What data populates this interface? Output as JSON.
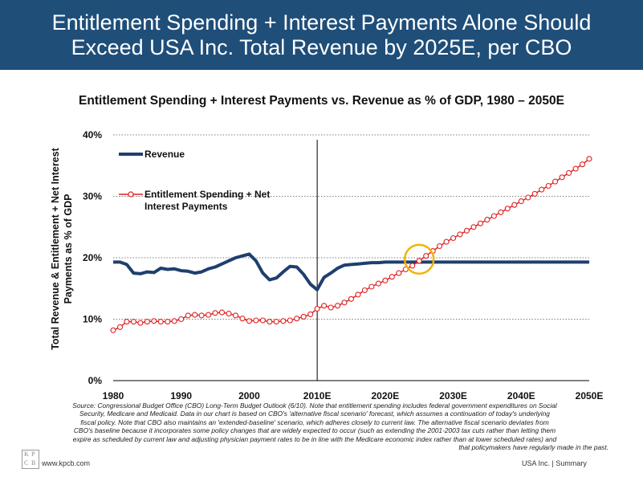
{
  "header": {
    "line1": "Entitlement Spending + Interest Payments Alone Should",
    "line2": "Exceed USA Inc. Total Revenue by 2025E, per CBO"
  },
  "subtitle": "Entitlement Spending + Interest Payments vs. Revenue as % of GDP, 1980 – 2050E",
  "chart_data": {
    "type": "line",
    "xlabel": "",
    "ylabel_line1": "Total Revenue & Entitlement + Net Interest",
    "ylabel_line2": "Payments as % of GDP",
    "x_ticks": [
      "1980",
      "1990",
      "2000",
      "2010E",
      "2020E",
      "2030E",
      "2040E",
      "2050E"
    ],
    "y_ticks": [
      "0%",
      "10%",
      "20%",
      "30%",
      "40%"
    ],
    "xlim": [
      1980,
      2050
    ],
    "ylim": [
      0,
      40
    ],
    "grid": "horizontal dotted",
    "vertical_marker_year": 2010,
    "highlight_circle": {
      "x": 2025,
      "y": 19.5
    },
    "colors": {
      "revenue": "#1f3f6e",
      "entitlement": "#e02020"
    },
    "series": [
      {
        "name": "Revenue",
        "marker": "none",
        "x": [
          1980,
          1981,
          1982,
          1983,
          1984,
          1985,
          1986,
          1987,
          1988,
          1989,
          1990,
          1991,
          1992,
          1993,
          1994,
          1995,
          1996,
          1997,
          1998,
          1999,
          2000,
          2001,
          2002,
          2003,
          2004,
          2005,
          2006,
          2007,
          2008,
          2009,
          2010,
          2011,
          2012,
          2013,
          2014,
          2015,
          2016,
          2017,
          2018,
          2019,
          2020,
          2025,
          2030,
          2035,
          2040,
          2045,
          2050
        ],
        "y": [
          19.3,
          19.3,
          18.9,
          17.5,
          17.4,
          17.7,
          17.6,
          18.3,
          18.1,
          18.2,
          17.9,
          17.8,
          17.5,
          17.7,
          18.2,
          18.5,
          19.0,
          19.5,
          20.0,
          20.3,
          20.6,
          19.5,
          17.5,
          16.4,
          16.7,
          17.7,
          18.6,
          18.5,
          17.3,
          15.7,
          14.8,
          16.8,
          17.5,
          18.3,
          18.8,
          18.9,
          19.0,
          19.1,
          19.2,
          19.2,
          19.3,
          19.3,
          19.3,
          19.3,
          19.3,
          19.3,
          19.3
        ]
      },
      {
        "name": "Entitlement Spending + Net Interest Payments",
        "marker": "circle",
        "x": [
          1980,
          1981,
          1982,
          1983,
          1984,
          1985,
          1986,
          1987,
          1988,
          1989,
          1990,
          1991,
          1992,
          1993,
          1994,
          1995,
          1996,
          1997,
          1998,
          1999,
          2000,
          2001,
          2002,
          2003,
          2004,
          2005,
          2006,
          2007,
          2008,
          2009,
          2010,
          2011,
          2012,
          2013,
          2014,
          2015,
          2016,
          2017,
          2018,
          2019,
          2020,
          2021,
          2022,
          2023,
          2024,
          2025,
          2026,
          2027,
          2028,
          2029,
          2030,
          2031,
          2032,
          2033,
          2034,
          2035,
          2036,
          2037,
          2038,
          2039,
          2040,
          2041,
          2042,
          2043,
          2044,
          2045,
          2046,
          2047,
          2048,
          2049,
          2050
        ],
        "y": [
          8.2,
          8.7,
          9.6,
          9.6,
          9.4,
          9.6,
          9.7,
          9.6,
          9.6,
          9.7,
          10.0,
          10.6,
          10.7,
          10.6,
          10.7,
          11.0,
          11.1,
          10.9,
          10.6,
          10.1,
          9.7,
          9.8,
          9.8,
          9.6,
          9.6,
          9.7,
          9.8,
          10.1,
          10.4,
          10.8,
          11.7,
          12.2,
          11.9,
          12.2,
          12.7,
          13.3,
          14.0,
          14.7,
          15.3,
          15.8,
          16.3,
          16.9,
          17.5,
          18.1,
          18.7,
          19.5,
          20.3,
          21.1,
          21.9,
          22.6,
          23.2,
          23.8,
          24.4,
          25.0,
          25.6,
          26.2,
          26.8,
          27.4,
          28.0,
          28.6,
          29.2,
          29.8,
          30.4,
          31.1,
          31.7,
          32.4,
          33.1,
          33.8,
          34.5,
          35.2,
          36.1
        ]
      }
    ],
    "legend": [
      {
        "label": "Revenue"
      },
      {
        "label_line1": "Entitlement Spending + Net",
        "label_line2": "Interest Payments"
      }
    ]
  },
  "source_note": [
    "Source: Congressional Budget Office (CBO) Long-Term Budget Outlook (6/10). Note that entitlement spending includes federal government expenditures on Social",
    "Security, Medicare and Medicaid. Data in our chart is based on CBO's 'alternative fiscal scenario' forecast, which assumes a continuation of today's underlying",
    "fiscal policy. Note that CBO also maintains an 'extended-baseline' scenario, which adheres closely to current law. The alternative fiscal scenario deviates from",
    "CBO's baseline because it incorporates some policy changes that are widely expected to occur (such as extending the 2001-2003 tax cuts rather than letting them",
    "expire as scheduled by current law and adjusting physician payment rates to be in line with the Medicare economic index rather than at lower scheduled rates) and",
    "that policymakers have regularly made in the past."
  ],
  "footer": {
    "logo_letters": [
      "K",
      "P",
      "C",
      "B"
    ],
    "url": "www.kpcb.com",
    "summary": "USA Inc. | Summary"
  }
}
